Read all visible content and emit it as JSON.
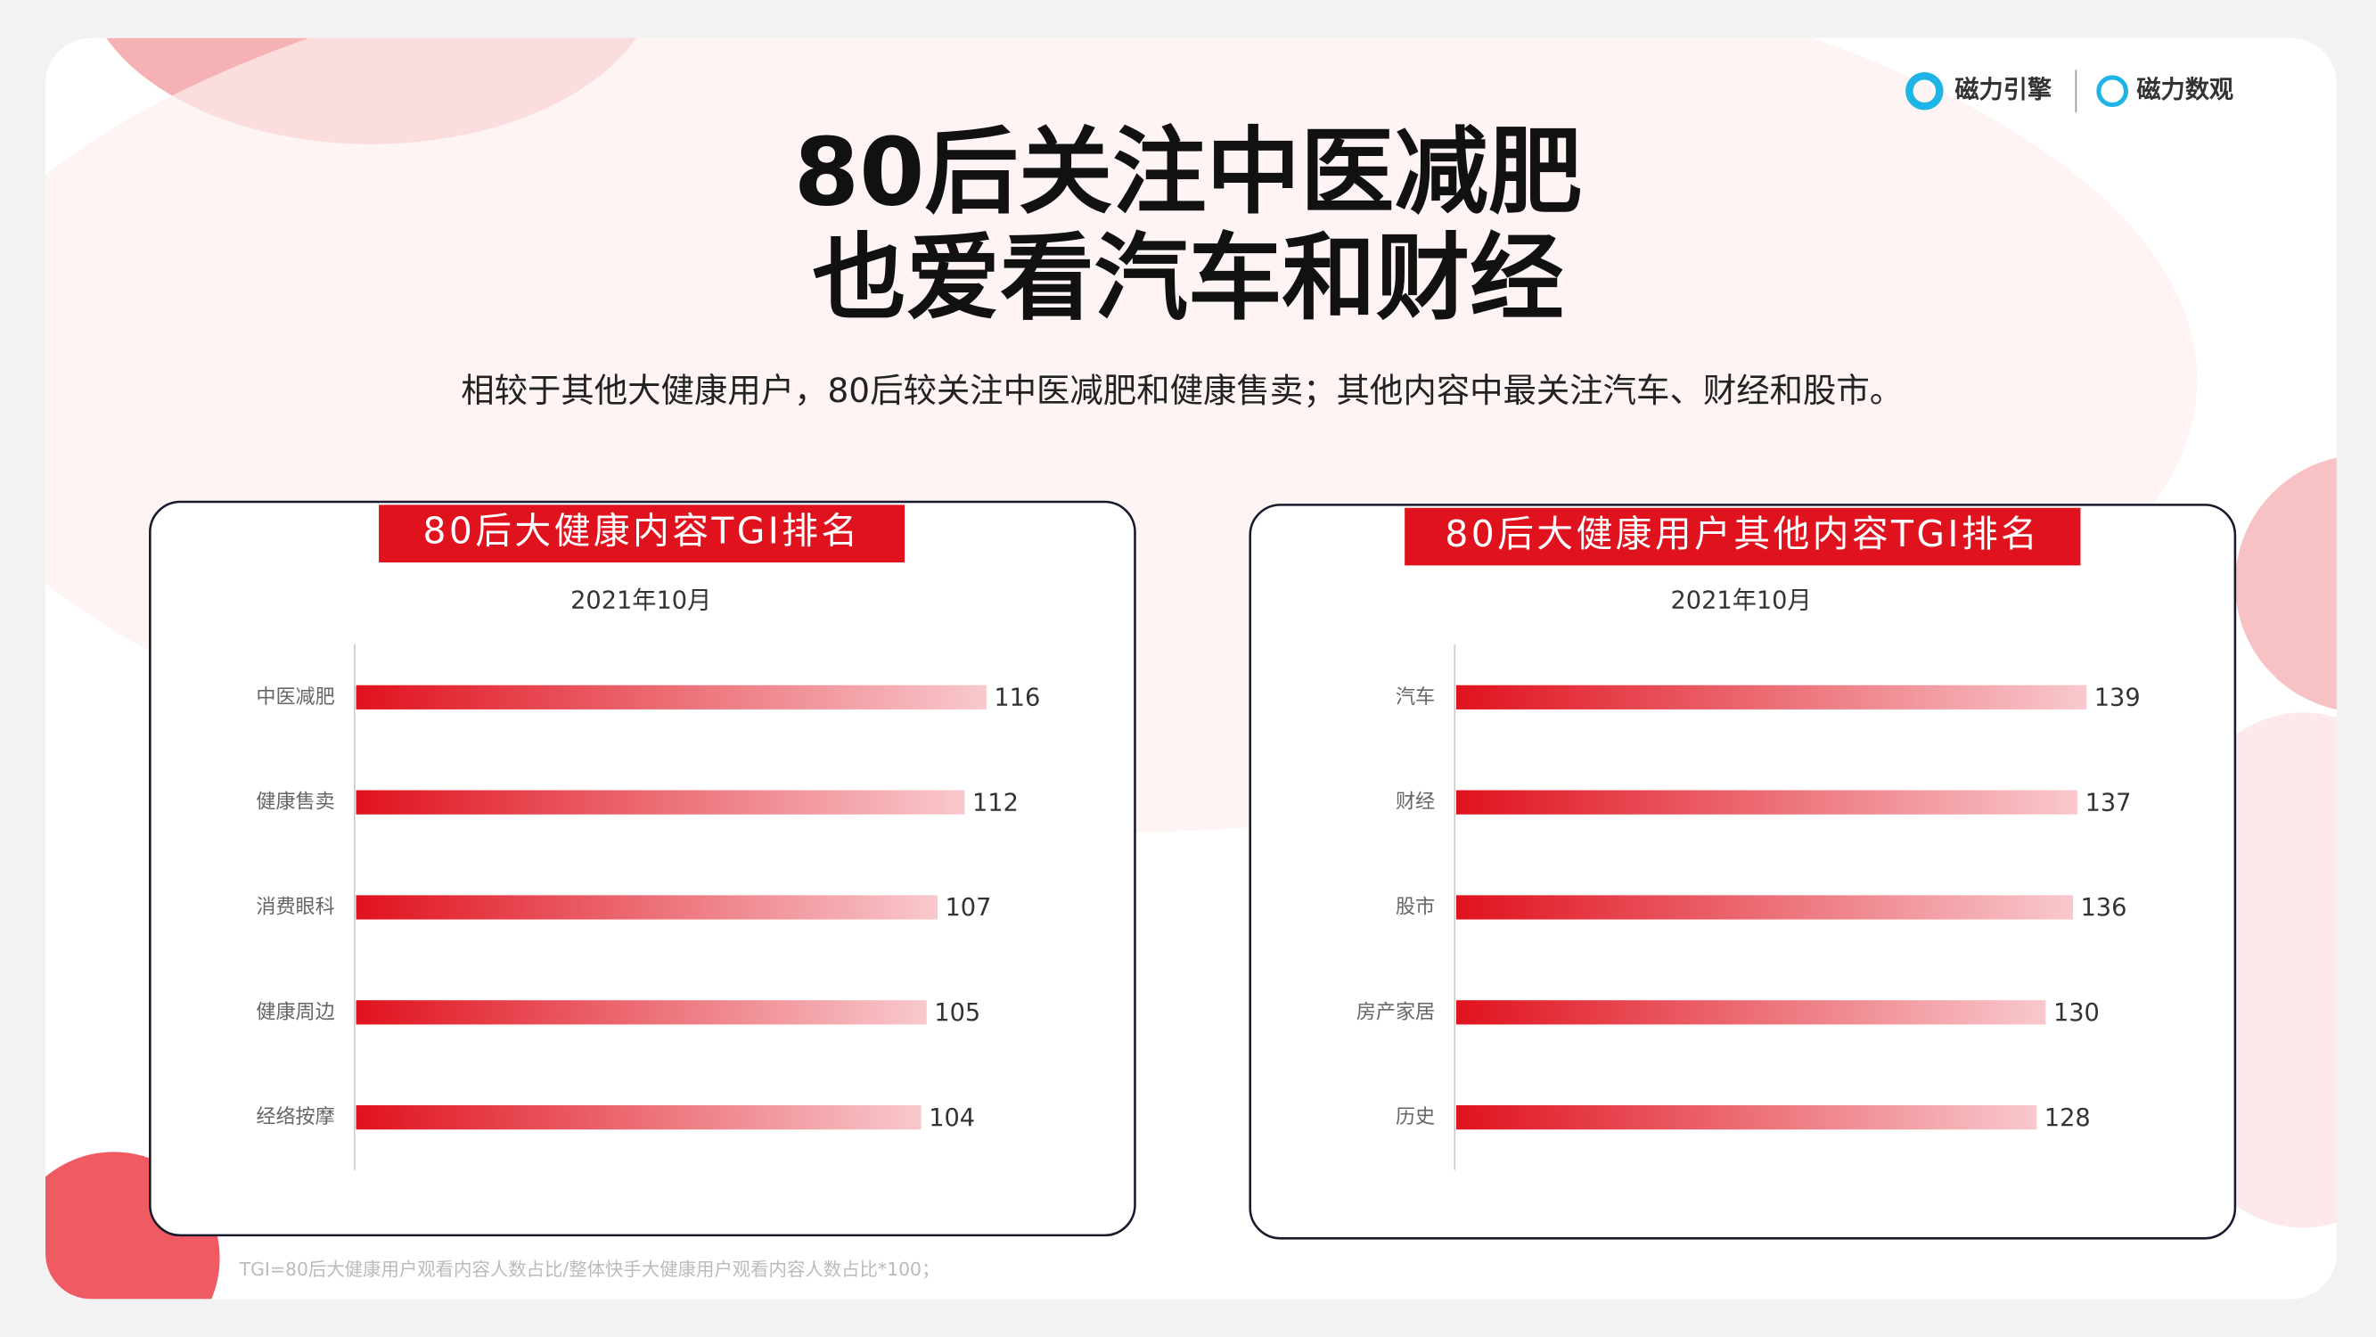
{
  "header": {
    "logos": [
      "磁力引擎",
      "磁力数观"
    ],
    "title_lines": [
      "80后关注中医减肥",
      "也爱看汽车和财经"
    ],
    "subtitle": "相较于其他大健康用户，80后较关注中医减肥和健康售卖；其他内容中最关注汽车、财经和股市。"
  },
  "chart_data": [
    {
      "type": "bar",
      "title": "80后大健康内容TGI排名",
      "subtitle": "2021年10月",
      "categories": [
        "中医减肥",
        "健康售卖",
        "消费眼科",
        "健康周边",
        "经络按摩"
      ],
      "values": [
        116,
        112,
        107,
        105,
        104
      ],
      "color": "#e0121e"
    },
    {
      "type": "bar",
      "title": "80后大健康用户其他内容TGI排名",
      "subtitle": "2021年10月",
      "categories": [
        "汽车",
        "财经",
        "股市",
        "房产家居",
        "历史"
      ],
      "values": [
        139,
        137,
        136,
        130,
        128
      ],
      "color": "#e0121e"
    }
  ],
  "footnote": "TGI=80后大健康用户观看内容人数占比/整体快手大健康用户观看内容人数占比*100；"
}
